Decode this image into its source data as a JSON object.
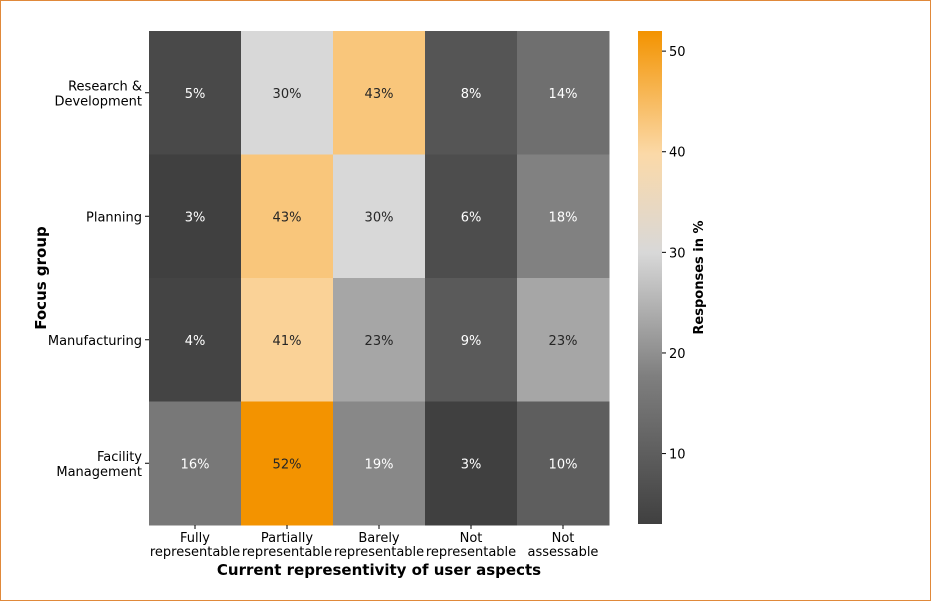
{
  "chart_data": {
    "type": "heatmap",
    "title": "",
    "xlabel": "Current representivity of user aspects",
    "ylabel": "Focus group",
    "colorbar_label": "Responses in %",
    "x_categories": [
      [
        "Fully",
        "representable"
      ],
      [
        "Partially",
        "representable"
      ],
      [
        "Barely",
        "representable"
      ],
      [
        "Not",
        "representable"
      ],
      [
        "Not",
        "assessable"
      ]
    ],
    "y_categories": [
      [
        "Research &",
        "Development"
      ],
      [
        "Planning"
      ],
      [
        "Manufacturing"
      ],
      [
        "Facility",
        "Management"
      ]
    ],
    "values": [
      [
        5,
        30,
        43,
        8,
        14
      ],
      [
        3,
        43,
        30,
        6,
        18
      ],
      [
        4,
        41,
        23,
        9,
        23
      ],
      [
        16,
        52,
        19,
        3,
        10
      ]
    ],
    "value_suffix": "%",
    "color_range": [
      3,
      52
    ],
    "colorbar_ticks": [
      10,
      20,
      30,
      40,
      50
    ],
    "colormap": [
      "#404040",
      "#808080",
      "#d8d8d8",
      "#fbd9a8",
      "#f39300"
    ]
  }
}
